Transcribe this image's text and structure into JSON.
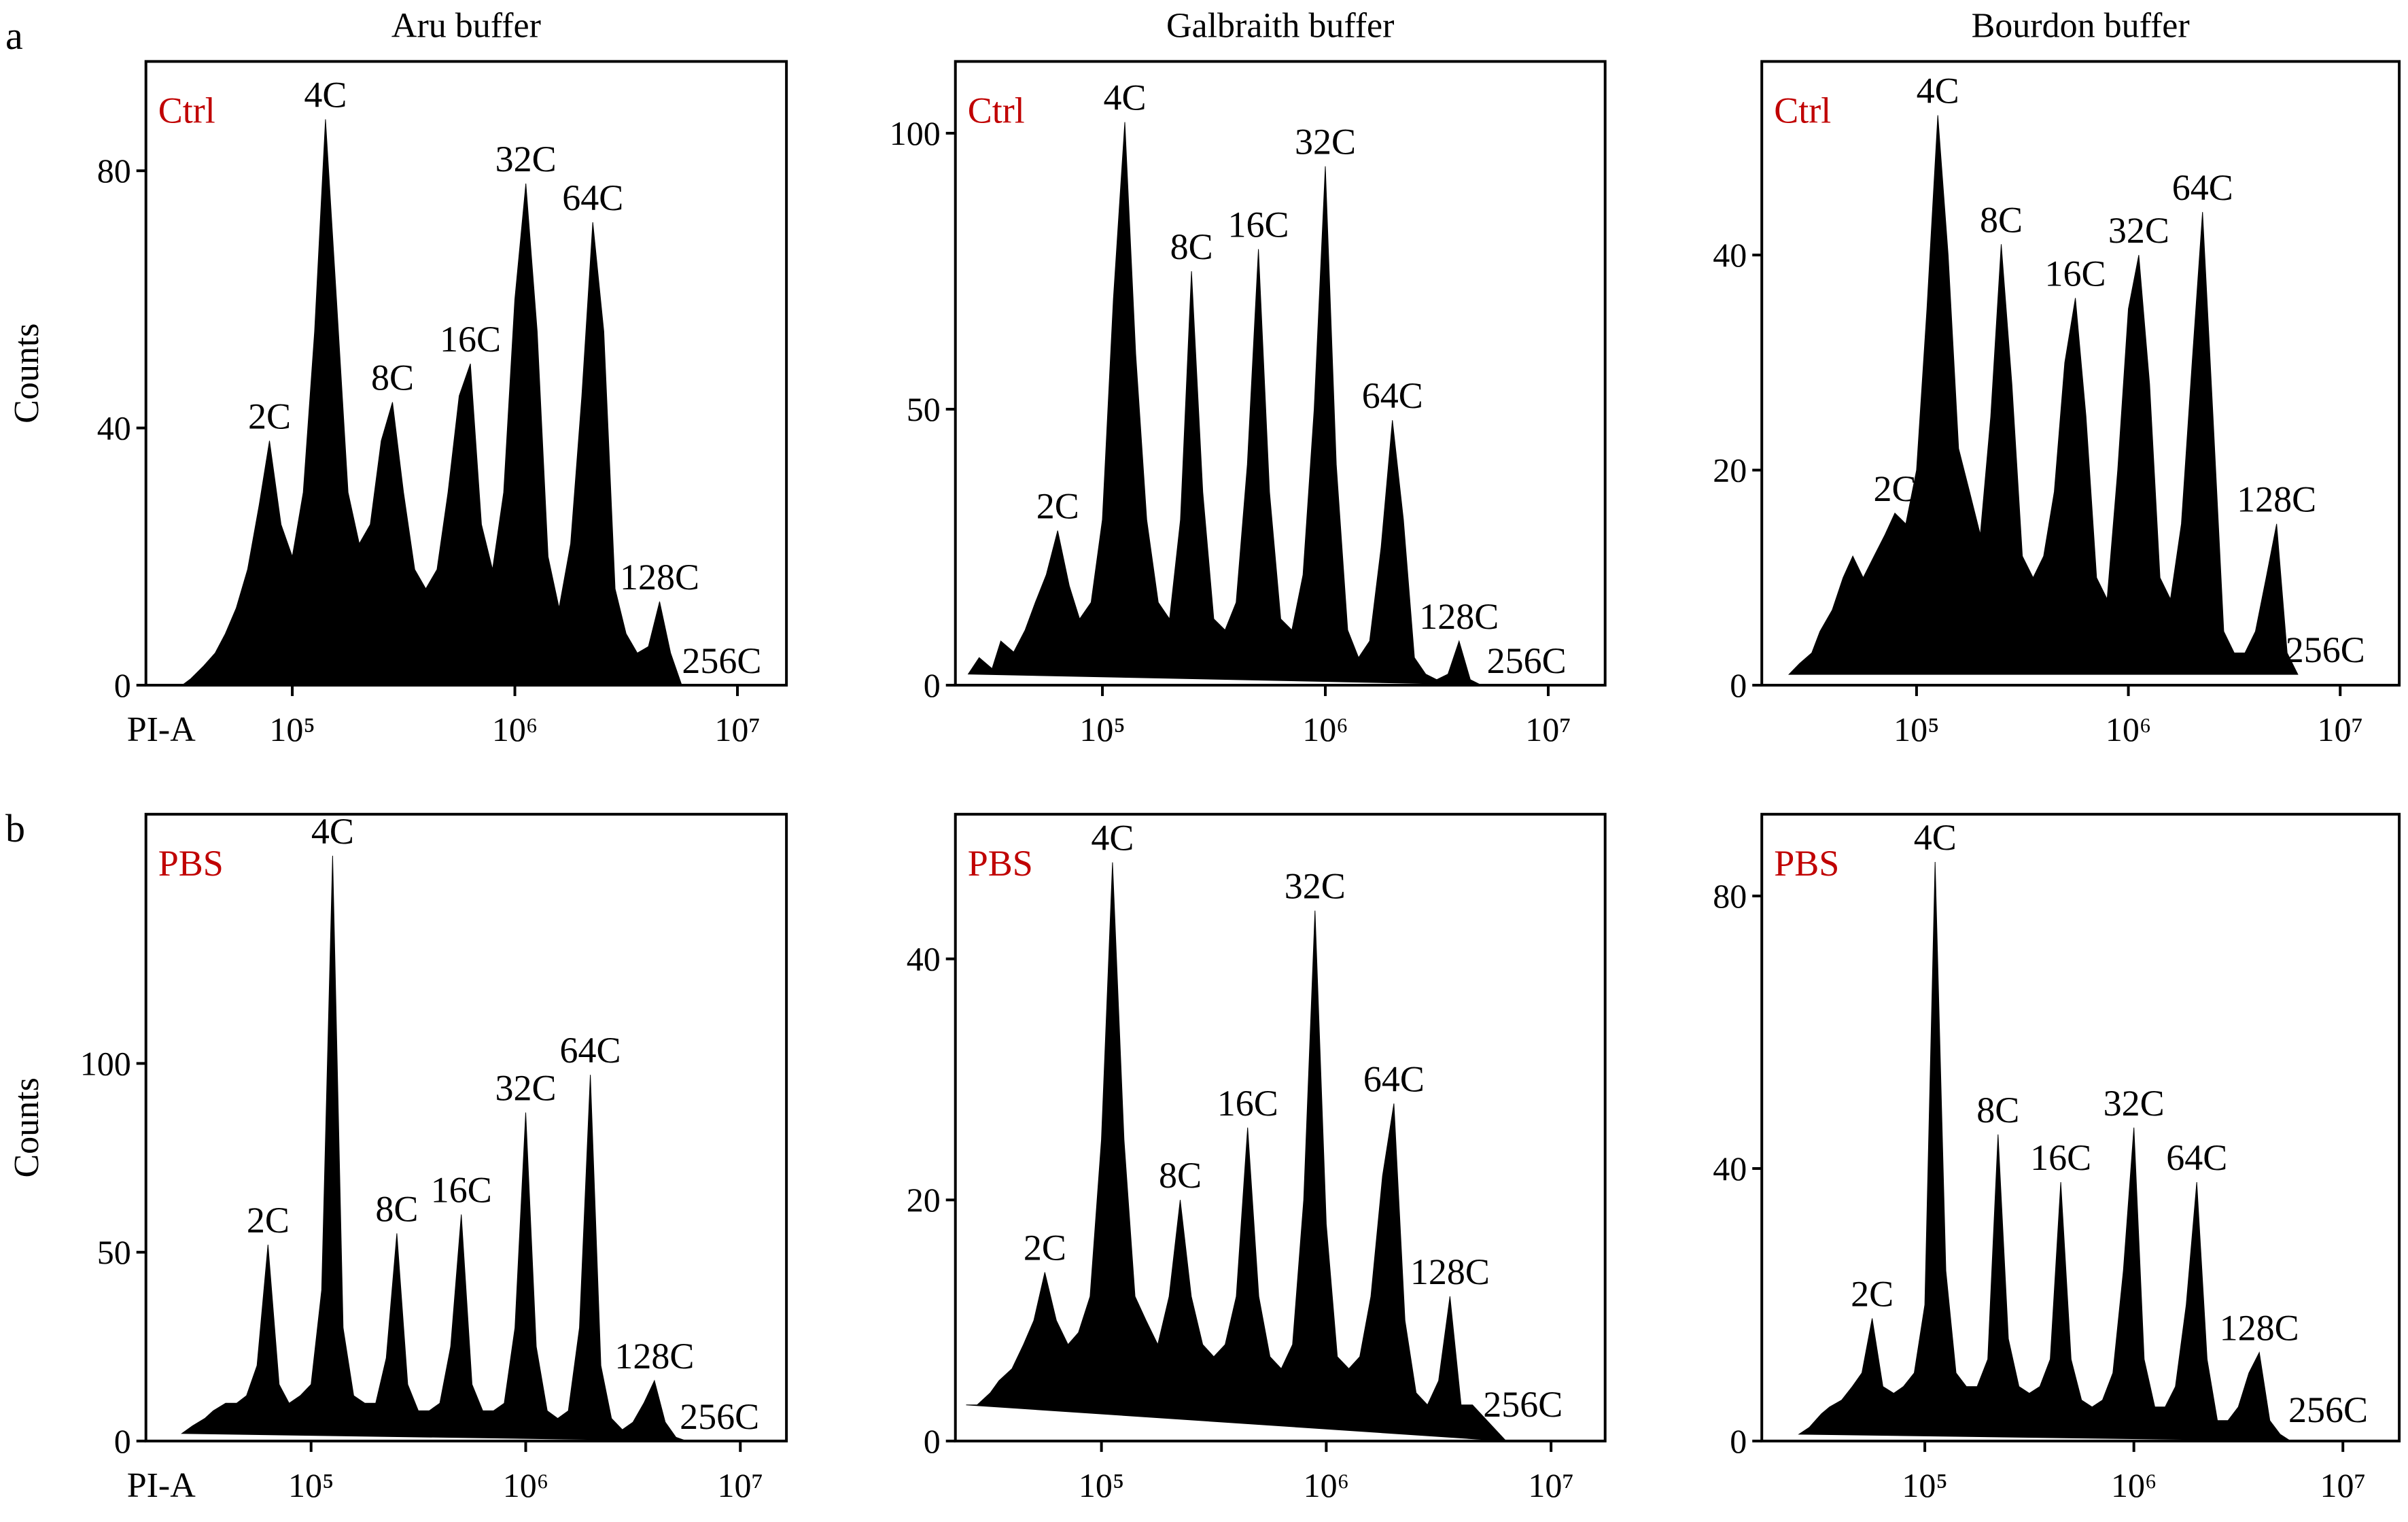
{
  "figure": {
    "panel_labels": [
      "a",
      "b"
    ]
  },
  "chart_data": [
    {
      "type": "area",
      "title": "Aru buffer",
      "ylabel": "Counts",
      "xlabel": "PI-A",
      "condition": "Ctrl",
      "condition_color": "#c00000",
      "color": "#000000",
      "log_x": true,
      "xlim": [
        22000,
        16600000
      ],
      "xticks": [
        {
          "value": 100000,
          "label": "10⁵"
        },
        {
          "value": 1000000,
          "label": "10⁶"
        },
        {
          "value": 10000000,
          "label": "10⁷"
        }
      ],
      "ylim": [
        0,
        97
      ],
      "yticks": [
        0,
        40,
        80
      ],
      "x": [
        25000,
        28000,
        32000,
        35000,
        40000,
        45000,
        50000,
        56000,
        63000,
        71000,
        79000,
        89000,
        100000,
        112000,
        126000,
        141000,
        158000,
        178000,
        200000,
        224000,
        251000,
        282000,
        316000,
        355000,
        398000,
        447000,
        501000,
        562000,
        631000,
        708000,
        794000,
        891000,
        1000000,
        1120000,
        1260000,
        1410000,
        1580000,
        1780000,
        2000000,
        2240000,
        2510000,
        2820000,
        3160000,
        3550000,
        3980000,
        4470000,
        5010000,
        5620000,
        6310000
      ],
      "values": [
        0,
        0,
        0,
        1,
        3,
        5,
        8,
        12,
        18,
        28,
        38,
        25,
        20,
        30,
        55,
        88,
        60,
        30,
        22,
        25,
        38,
        44,
        30,
        18,
        15,
        18,
        30,
        45,
        50,
        25,
        18,
        30,
        60,
        78,
        55,
        20,
        12,
        22,
        45,
        72,
        55,
        15,
        8,
        5,
        6,
        13,
        5,
        0,
        0
      ],
      "annotations": [
        {
          "text": "2C",
          "x": 79000,
          "y": 38
        },
        {
          "text": "4C",
          "x": 141000,
          "y": 88
        },
        {
          "text": "8C",
          "x": 282000,
          "y": 44
        },
        {
          "text": "16C",
          "x": 631000,
          "y": 50
        },
        {
          "text": "32C",
          "x": 1120000,
          "y": 78
        },
        {
          "text": "64C",
          "x": 2240000,
          "y": 72
        },
        {
          "text": "128C",
          "x": 4470000,
          "y": 13
        },
        {
          "text": "256C",
          "x": 8500000,
          "y": 0
        }
      ]
    },
    {
      "type": "area",
      "title": "Galbraith buffer",
      "condition": "Ctrl",
      "condition_color": "#c00000",
      "color": "#000000",
      "log_x": true,
      "xlim": [
        21900,
        18000000
      ],
      "xticks": [
        {
          "value": 100000,
          "label": "10⁵"
        },
        {
          "value": 1000000,
          "label": "10⁶"
        },
        {
          "value": 10000000,
          "label": "10⁷"
        }
      ],
      "ylim": [
        0,
        113
      ],
      "yticks": [
        0,
        50,
        100
      ],
      "x": [
        25000,
        28000,
        32000,
        35000,
        40000,
        45000,
        50000,
        56000,
        63000,
        71000,
        79000,
        89000,
        100000,
        112000,
        126000,
        141000,
        158000,
        178000,
        200000,
        224000,
        251000,
        282000,
        316000,
        355000,
        398000,
        447000,
        501000,
        562000,
        631000,
        708000,
        794000,
        891000,
        1000000,
        1120000,
        1260000,
        1410000,
        1580000,
        1780000,
        2000000,
        2240000,
        2510000,
        2820000,
        3160000,
        3550000,
        3980000,
        4470000,
        5010000,
        5620000,
        6310000
      ],
      "values": [
        2,
        5,
        3,
        8,
        6,
        10,
        15,
        20,
        28,
        18,
        12,
        15,
        30,
        70,
        102,
        60,
        30,
        15,
        12,
        30,
        75,
        35,
        12,
        10,
        15,
        40,
        79,
        35,
        12,
        10,
        20,
        50,
        94,
        40,
        10,
        5,
        8,
        25,
        48,
        30,
        5,
        2,
        1,
        2,
        8,
        1,
        0,
        0,
        0
      ],
      "annotations": [
        {
          "text": "2C",
          "x": 63000,
          "y": 28
        },
        {
          "text": "4C",
          "x": 126000,
          "y": 102
        },
        {
          "text": "8C",
          "x": 251000,
          "y": 75
        },
        {
          "text": "16C",
          "x": 501000,
          "y": 79
        },
        {
          "text": "32C",
          "x": 1000000,
          "y": 94
        },
        {
          "text": "64C",
          "x": 2000000,
          "y": 48
        },
        {
          "text": "128C",
          "x": 3980000,
          "y": 8
        },
        {
          "text": "256C",
          "x": 8000000,
          "y": 0
        }
      ]
    },
    {
      "type": "area",
      "title": "Bourdon buffer",
      "condition": "Ctrl",
      "condition_color": "#c00000",
      "color": "#000000",
      "log_x": true,
      "xlim": [
        18600,
        19000000
      ],
      "xticks": [
        {
          "value": 100000,
          "label": "10⁵"
        },
        {
          "value": 1000000,
          "label": "10⁶"
        },
        {
          "value": 10000000,
          "label": "10⁷"
        }
      ],
      "ylim": [
        0,
        58
      ],
      "yticks": [
        0,
        20,
        40
      ],
      "x": [
        25000,
        28000,
        32000,
        35000,
        40000,
        45000,
        50000,
        56000,
        63000,
        71000,
        79000,
        89000,
        100000,
        112000,
        126000,
        141000,
        158000,
        178000,
        200000,
        224000,
        251000,
        282000,
        316000,
        355000,
        398000,
        447000,
        501000,
        562000,
        631000,
        708000,
        794000,
        891000,
        1000000,
        1120000,
        1260000,
        1410000,
        1580000,
        1780000,
        2000000,
        2240000,
        2510000,
        2820000,
        3160000,
        3550000,
        3980000,
        4470000,
        5010000,
        5620000,
        6310000
      ],
      "values": [
        1,
        2,
        3,
        5,
        7,
        10,
        12,
        10,
        12,
        14,
        16,
        15,
        20,
        35,
        53,
        40,
        22,
        18,
        14,
        25,
        41,
        28,
        12,
        10,
        12,
        18,
        30,
        36,
        25,
        10,
        8,
        20,
        35,
        40,
        28,
        10,
        8,
        15,
        30,
        44,
        25,
        5,
        3,
        3,
        5,
        10,
        15,
        3,
        1
      ],
      "annotations": [
        {
          "text": "2C",
          "x": 79000,
          "y": 16
        },
        {
          "text": "4C",
          "x": 126000,
          "y": 53
        },
        {
          "text": "8C",
          "x": 251000,
          "y": 41
        },
        {
          "text": "16C",
          "x": 562000,
          "y": 36
        },
        {
          "text": "32C",
          "x": 1120000,
          "y": 40
        },
        {
          "text": "64C",
          "x": 2240000,
          "y": 44
        },
        {
          "text": "128C",
          "x": 5010000,
          "y": 15
        },
        {
          "text": "256C",
          "x": 8500000,
          "y": 1
        }
      ]
    },
    {
      "type": "area",
      "ylabel": "Counts",
      "xlabel": "PI-A",
      "condition": "PBS",
      "condition_color": "#c00000",
      "color": "#000000",
      "log_x": true,
      "xlim": [
        17000,
        16400000
      ],
      "xticks": [
        {
          "value": 100000,
          "label": "10⁵"
        },
        {
          "value": 1000000,
          "label": "10⁶"
        },
        {
          "value": 10000000,
          "label": "10⁷"
        }
      ],
      "ylim": [
        0,
        166
      ],
      "yticks": [
        0,
        50,
        100
      ],
      "x": [
        25000,
        28000,
        32000,
        35000,
        40000,
        45000,
        50000,
        56000,
        63000,
        71000,
        79000,
        89000,
        100000,
        112000,
        126000,
        141000,
        158000,
        178000,
        200000,
        224000,
        251000,
        282000,
        316000,
        355000,
        398000,
        447000,
        501000,
        562000,
        631000,
        708000,
        794000,
        891000,
        1000000,
        1120000,
        1260000,
        1410000,
        1580000,
        1780000,
        2000000,
        2240000,
        2510000,
        2820000,
        3160000,
        3550000,
        3980000,
        4470000,
        5010000,
        5620000,
        6310000
      ],
      "values": [
        2,
        4,
        6,
        8,
        10,
        10,
        12,
        20,
        52,
        15,
        10,
        12,
        15,
        40,
        155,
        30,
        12,
        10,
        10,
        22,
        55,
        15,
        8,
        8,
        10,
        25,
        60,
        15,
        8,
        8,
        10,
        30,
        87,
        25,
        8,
        6,
        8,
        30,
        97,
        20,
        6,
        3,
        5,
        10,
        16,
        5,
        1,
        0,
        0
      ],
      "annotations": [
        {
          "text": "2C",
          "x": 63000,
          "y": 52
        },
        {
          "text": "4C",
          "x": 126000,
          "y": 155
        },
        {
          "text": "8C",
          "x": 251000,
          "y": 55
        },
        {
          "text": "16C",
          "x": 501000,
          "y": 60
        },
        {
          "text": "32C",
          "x": 1000000,
          "y": 87
        },
        {
          "text": "64C",
          "x": 2000000,
          "y": 97
        },
        {
          "text": "128C",
          "x": 3980000,
          "y": 16
        },
        {
          "text": "256C",
          "x": 8000000,
          "y": 0
        }
      ]
    },
    {
      "type": "area",
      "condition": "PBS",
      "condition_color": "#c00000",
      "color": "#000000",
      "log_x": true,
      "xlim": [
        22400,
        17400000
      ],
      "xticks": [
        {
          "value": 100000,
          "label": "10⁵"
        },
        {
          "value": 1000000,
          "label": "10⁶"
        },
        {
          "value": 10000000,
          "label": "10⁷"
        }
      ],
      "ylim": [
        0,
        52
      ],
      "yticks": [
        0,
        20,
        40
      ],
      "x": [
        25000,
        28000,
        32000,
        35000,
        40000,
        45000,
        50000,
        56000,
        63000,
        71000,
        79000,
        89000,
        100000,
        112000,
        126000,
        141000,
        158000,
        178000,
        200000,
        224000,
        251000,
        282000,
        316000,
        355000,
        398000,
        447000,
        501000,
        562000,
        631000,
        708000,
        794000,
        891000,
        1000000,
        1120000,
        1260000,
        1410000,
        1580000,
        1780000,
        2000000,
        2240000,
        2510000,
        2820000,
        3160000,
        3550000,
        3980000,
        4470000,
        5010000,
        5620000,
        6310000
      ],
      "values": [
        3,
        3,
        4,
        5,
        6,
        8,
        10,
        14,
        10,
        8,
        9,
        12,
        25,
        48,
        25,
        12,
        10,
        8,
        12,
        20,
        12,
        8,
        7,
        8,
        12,
        26,
        12,
        7,
        6,
        8,
        20,
        44,
        18,
        7,
        6,
        7,
        12,
        22,
        28,
        10,
        4,
        3,
        5,
        12,
        3,
        3,
        2,
        1,
        0
      ],
      "annotations": [
        {
          "text": "2C",
          "x": 56000,
          "y": 14
        },
        {
          "text": "4C",
          "x": 112000,
          "y": 48
        },
        {
          "text": "8C",
          "x": 224000,
          "y": 20
        },
        {
          "text": "16C",
          "x": 447000,
          "y": 26
        },
        {
          "text": "32C",
          "x": 891000,
          "y": 44
        },
        {
          "text": "64C",
          "x": 2000000,
          "y": 28
        },
        {
          "text": "128C",
          "x": 3550000,
          "y": 12
        },
        {
          "text": "256C",
          "x": 7500000,
          "y": 1
        }
      ]
    },
    {
      "type": "area",
      "condition": "PBS",
      "condition_color": "#c00000",
      "color": "#000000",
      "log_x": true,
      "xlim": [
        16600,
        18600000
      ],
      "xticks": [
        {
          "value": 100000,
          "label": "10⁵"
        },
        {
          "value": 1000000,
          "label": "10⁶"
        },
        {
          "value": 10000000,
          "label": "10⁷"
        }
      ],
      "ylim": [
        0,
        92
      ],
      "yticks": [
        0,
        40,
        80
      ],
      "x": [
        25000,
        28000,
        32000,
        35000,
        40000,
        45000,
        50000,
        56000,
        63000,
        71000,
        79000,
        89000,
        100000,
        112000,
        126000,
        141000,
        158000,
        178000,
        200000,
        224000,
        251000,
        282000,
        316000,
        355000,
        398000,
        447000,
        501000,
        562000,
        631000,
        708000,
        794000,
        891000,
        1000000,
        1120000,
        1260000,
        1410000,
        1580000,
        1780000,
        2000000,
        2240000,
        2510000,
        2820000,
        3160000,
        3550000,
        3980000,
        4470000,
        5010000,
        5620000,
        6310000
      ],
      "values": [
        1,
        2,
        4,
        5,
        6,
        8,
        10,
        18,
        8,
        7,
        8,
        10,
        20,
        85,
        25,
        10,
        8,
        8,
        12,
        45,
        15,
        8,
        7,
        8,
        12,
        38,
        12,
        6,
        5,
        6,
        10,
        25,
        46,
        12,
        5,
        5,
        8,
        20,
        38,
        12,
        3,
        3,
        5,
        10,
        13,
        3,
        1,
        0,
        0
      ],
      "annotations": [
        {
          "text": "2C",
          "x": 56000,
          "y": 18
        },
        {
          "text": "4C",
          "x": 112000,
          "y": 85
        },
        {
          "text": "8C",
          "x": 224000,
          "y": 45
        },
        {
          "text": "16C",
          "x": 447000,
          "y": 38
        },
        {
          "text": "32C",
          "x": 1000000,
          "y": 46
        },
        {
          "text": "64C",
          "x": 2000000,
          "y": 38
        },
        {
          "text": "128C",
          "x": 3980000,
          "y": 13
        },
        {
          "text": "256C",
          "x": 8500000,
          "y": 1
        }
      ]
    }
  ]
}
